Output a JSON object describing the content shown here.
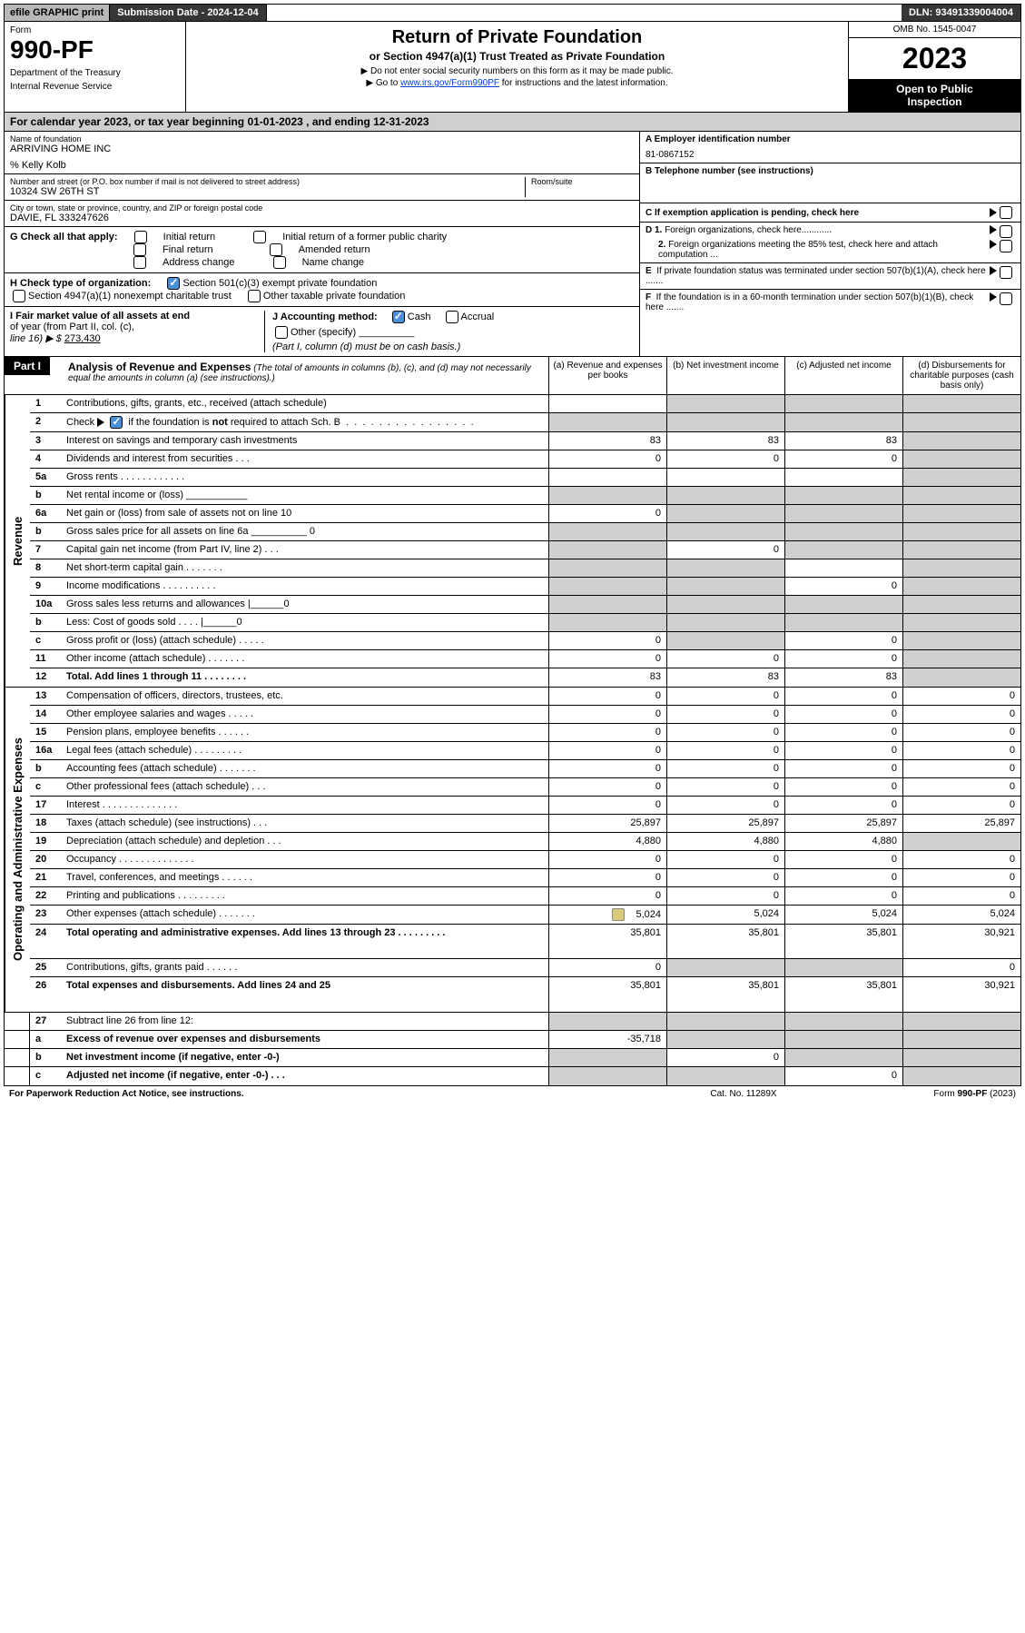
{
  "topbar": {
    "efile": "efile GRAPHIC print",
    "submission": "Submission Date - 2024-12-04",
    "dln": "DLN: 93491339004004"
  },
  "header": {
    "form_label": "Form",
    "form_number": "990-PF",
    "dept1": "Department of the Treasury",
    "dept2": "Internal Revenue Service",
    "title": "Return of Private Foundation",
    "subtitle": "or Section 4947(a)(1) Trust Treated as Private Foundation",
    "note1": "▶ Do not enter social security numbers on this form as it may be made public.",
    "note2_pre": "▶ Go to ",
    "note2_link": "www.irs.gov/Form990PF",
    "note2_post": " for instructions and the latest information.",
    "omb": "OMB No. 1545-0047",
    "year": "2023",
    "open1": "Open to Public",
    "open2": "Inspection"
  },
  "calendar": "For calendar year 2023, or tax year beginning 01-01-2023                     , and ending 12-31-2023",
  "foundation": {
    "name_label": "Name of foundation",
    "name": "ARRIVING HOME INC",
    "care_of": "% Kelly Kolb",
    "addr_label": "Number and street (or P.O. box number if mail is not delivered to street address)",
    "addr": "10324 SW 26TH ST",
    "room_label": "Room/suite",
    "city_label": "City or town, state or province, country, and ZIP or foreign postal code",
    "city": "DAVIE, FL  333247626"
  },
  "right_info": {
    "a_label": "A Employer identification number",
    "a_val": "81-0867152",
    "b_label": "B Telephone number (see instructions)",
    "c_label": "C If exemption application is pending, check here",
    "d1": "D 1. Foreign organizations, check here............",
    "d2a": "2. Foreign organizations meeting the 85%",
    "d2b": "test, check here and attach computation ...",
    "e1": "E  If private foundation status was terminated",
    "e2": "under section 507(b)(1)(A), check here .......",
    "f1": "F  If the foundation is in a 60-month termination",
    "f2": "under section 507(b)(1)(B), check here .......",
    "g_label": "G Check all that apply:",
    "g_initial": "Initial return",
    "g_initial_former": "Initial return of a former public charity",
    "g_final": "Final return",
    "g_amended": "Amended return",
    "g_address": "Address change",
    "g_name": "Name change",
    "h_label": "H Check type of organization:",
    "h_501c3": "Section 501(c)(3) exempt private foundation",
    "h_4947": "Section 4947(a)(1) nonexempt charitable trust",
    "h_other": "Other taxable private foundation",
    "i_label1": "I Fair market value of all assets at end",
    "i_label2": "of year (from Part II, col. (c),",
    "i_label3": "line 16) ▶ $ ",
    "i_val": "273,430",
    "j_label": "J Accounting method:",
    "j_cash": "Cash",
    "j_accrual": "Accrual",
    "j_other": "Other (specify)",
    "j_note": "(Part I, column (d) must be on cash basis.)"
  },
  "part1": {
    "label": "Part I",
    "title": "Analysis of Revenue and Expenses",
    "title_note": " (The total of amounts in columns (b), (c), and (d) may not necessarily equal the amounts in column (a) (see instructions).)",
    "col_a": "(a)   Revenue and expenses per books",
    "col_b": "(b)   Net investment income",
    "col_c": "(c)   Adjusted net income",
    "col_d": "(d)   Disbursements for charitable purposes (cash basis only)"
  },
  "sides": {
    "revenue": "Revenue",
    "expenses": "Operating and Administrative Expenses"
  },
  "rows": [
    {
      "n": "1",
      "d": "Contributions, gifts, grants, etc., received (attach schedule)",
      "a": "",
      "b": "grey",
      "c": "grey",
      "dd": "grey"
    },
    {
      "n": "2",
      "d": "Check ▶ [✓] if the foundation is not required to attach Sch. B   .  .  .  .  .  .  .  .  .  .  .  .  .  .  .  .  .",
      "a": "grey",
      "b": "grey",
      "c": "grey",
      "dd": "grey",
      "checked": true,
      "bold_not": true
    },
    {
      "n": "3",
      "d": "Interest on savings and temporary cash investments",
      "a": "83",
      "b": "83",
      "c": "83",
      "dd": "grey"
    },
    {
      "n": "4",
      "d": "Dividends and interest from securities   .   .   .",
      "a": "0",
      "b": "0",
      "c": "0",
      "dd": "grey"
    },
    {
      "n": "5a",
      "d": "Gross rents   .   .   .   .   .   .   .   .   .   .   .   .",
      "a": "",
      "b": "",
      "c": "",
      "dd": "grey"
    },
    {
      "n": "b",
      "d": "Net rental income or (loss)  ___________",
      "a": "grey",
      "b": "grey",
      "c": "grey",
      "dd": "grey"
    },
    {
      "n": "6a",
      "d": "Net gain or (loss) from sale of assets not on line 10",
      "a": "0",
      "b": "grey",
      "c": "grey",
      "dd": "grey"
    },
    {
      "n": "b",
      "d": "Gross sales price for all assets on line 6a __________ 0",
      "a": "grey",
      "b": "grey",
      "c": "grey",
      "dd": "grey"
    },
    {
      "n": "7",
      "d": "Capital gain net income (from Part IV, line 2)   .   .   .",
      "a": "grey",
      "b": "0",
      "c": "grey",
      "dd": "grey"
    },
    {
      "n": "8",
      "d": "Net short-term capital gain   .   .   .   .   .   .   .",
      "a": "grey",
      "b": "grey",
      "c": "",
      "dd": "grey"
    },
    {
      "n": "9",
      "d": "Income modifications .   .   .   .   .   .   .   .   .   .",
      "a": "grey",
      "b": "grey",
      "c": "0",
      "dd": "grey"
    },
    {
      "n": "10a",
      "d": "Gross sales less returns and allowances  |______0",
      "a": "grey",
      "b": "grey",
      "c": "grey",
      "dd": "grey"
    },
    {
      "n": "b",
      "d": "Less: Cost of goods sold   .   .   .   .   |______0",
      "a": "grey",
      "b": "grey",
      "c": "grey",
      "dd": "grey"
    },
    {
      "n": "c",
      "d": "Gross profit or (loss) (attach schedule)   .   .   .   .   .",
      "a": "0",
      "b": "grey",
      "c": "0",
      "dd": "grey"
    },
    {
      "n": "11",
      "d": "Other income (attach schedule)   .   .   .   .   .   .   .",
      "a": "0",
      "b": "0",
      "c": "0",
      "dd": "grey"
    },
    {
      "n": "12",
      "d": "Total. Add lines 1 through 11   .   .   .   .   .   .   .   .",
      "a": "83",
      "b": "83",
      "c": "83",
      "dd": "grey",
      "bold": true
    }
  ],
  "exp_rows": [
    {
      "n": "13",
      "d": "Compensation of officers, directors, trustees, etc.",
      "a": "0",
      "b": "0",
      "c": "0",
      "dd": "0"
    },
    {
      "n": "14",
      "d": "Other employee salaries and wages   .   .   .   .   .",
      "a": "0",
      "b": "0",
      "c": "0",
      "dd": "0"
    },
    {
      "n": "15",
      "d": "Pension plans, employee benefits   .   .   .   .   .   .",
      "a": "0",
      "b": "0",
      "c": "0",
      "dd": "0"
    },
    {
      "n": "16a",
      "d": "Legal fees (attach schedule) .   .   .   .   .   .   .   .   .",
      "a": "0",
      "b": "0",
      "c": "0",
      "dd": "0"
    },
    {
      "n": "b",
      "d": "Accounting fees (attach schedule)  .   .   .   .   .   .   .",
      "a": "0",
      "b": "0",
      "c": "0",
      "dd": "0"
    },
    {
      "n": "c",
      "d": "Other professional fees (attach schedule)   .   .   .",
      "a": "0",
      "b": "0",
      "c": "0",
      "dd": "0"
    },
    {
      "n": "17",
      "d": "Interest  .   .   .   .   .   .   .   .   .   .   .   .   .   .",
      "a": "0",
      "b": "0",
      "c": "0",
      "dd": "0"
    },
    {
      "n": "18",
      "d": "Taxes (attach schedule) (see instructions)   .   .   .",
      "a": "25,897",
      "b": "25,897",
      "c": "25,897",
      "dd": "25,897"
    },
    {
      "n": "19",
      "d": "Depreciation (attach schedule) and depletion   .   .   .",
      "a": "4,880",
      "b": "4,880",
      "c": "4,880",
      "dd": "grey"
    },
    {
      "n": "20",
      "d": "Occupancy .   .   .   .   .   .   .   .   .   .   .   .   .   .",
      "a": "0",
      "b": "0",
      "c": "0",
      "dd": "0"
    },
    {
      "n": "21",
      "d": "Travel, conferences, and meetings  .   .   .   .   .   .",
      "a": "0",
      "b": "0",
      "c": "0",
      "dd": "0"
    },
    {
      "n": "22",
      "d": "Printing and publications .   .   .   .   .   .   .   .   .",
      "a": "0",
      "b": "0",
      "c": "0",
      "dd": "0"
    },
    {
      "n": "23",
      "d": "Other expenses (attach schedule)  .   .   .   .   .   .   .",
      "a": "5,024",
      "b": "5,024",
      "c": "5,024",
      "dd": "5,024",
      "icon": true
    },
    {
      "n": "24",
      "d": "Total operating and administrative expenses. Add lines 13 through 23   .   .   .   .   .   .   .   .   .",
      "a": "35,801",
      "b": "35,801",
      "c": "35,801",
      "dd": "30,921",
      "bold": true,
      "tall": true
    },
    {
      "n": "25",
      "d": "Contributions, gifts, grants paid   .   .   .   .   .   .",
      "a": "0",
      "b": "grey",
      "c": "grey",
      "dd": "0"
    },
    {
      "n": "26",
      "d": "Total expenses and disbursements. Add lines 24 and 25",
      "a": "35,801",
      "b": "35,801",
      "c": "35,801",
      "dd": "30,921",
      "bold": true,
      "tall": true
    }
  ],
  "bottom_rows": [
    {
      "n": "27",
      "d": "Subtract line 26 from line 12:",
      "a": "grey",
      "b": "grey",
      "c": "grey",
      "dd": "grey"
    },
    {
      "n": "a",
      "d": "Excess of revenue over expenses and disbursements",
      "a": "-35,718",
      "b": "grey",
      "c": "grey",
      "dd": "grey",
      "bold": true
    },
    {
      "n": "b",
      "d": "Net investment income (if negative, enter -0-)",
      "a": "grey",
      "b": "0",
      "c": "grey",
      "dd": "grey",
      "bold": true
    },
    {
      "n": "c",
      "d": "Adjusted net income (if negative, enter -0-)   .   .   .",
      "a": "grey",
      "b": "grey",
      "c": "0",
      "dd": "grey",
      "bold": true
    }
  ],
  "footer": {
    "left": "For Paperwork Reduction Act Notice, see instructions.",
    "mid": "Cat. No. 11289X",
    "right": "Form 990-PF (2023)"
  }
}
